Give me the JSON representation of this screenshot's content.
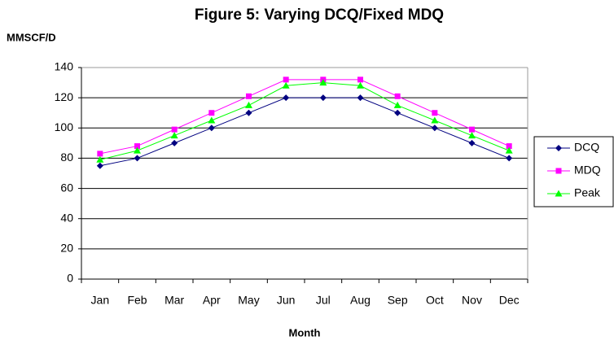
{
  "chart_data": {
    "type": "line",
    "title": "Figure 5: Varying DCQ/Fixed MDQ",
    "y_label": "MMSCF/D",
    "x_label": "Month",
    "categories": [
      "Jan",
      "Feb",
      "Mar",
      "Apr",
      "May",
      "Jun",
      "Jul",
      "Aug",
      "Sep",
      "Oct",
      "Nov",
      "Dec"
    ],
    "series": [
      {
        "name": "DCQ",
        "color": "#000080",
        "marker": "diamond",
        "values": [
          75,
          80,
          90,
          100,
          110,
          120,
          120,
          120,
          110,
          100,
          90,
          80
        ]
      },
      {
        "name": "MDQ",
        "color": "#ff00ff",
        "marker": "square",
        "values": [
          83,
          88,
          99,
          110,
          121,
          132,
          132,
          132,
          121,
          110,
          99,
          88
        ]
      },
      {
        "name": "Peak",
        "color": "#00ff00",
        "marker": "triangle",
        "values": [
          79,
          85,
          95,
          105,
          115,
          128,
          130,
          128,
          115,
          105,
          95,
          85
        ]
      }
    ],
    "ylim": [
      0,
      140
    ],
    "yticks": [
      0,
      20,
      40,
      60,
      80,
      100,
      120,
      140
    ],
    "grid": true,
    "legend": "right"
  }
}
